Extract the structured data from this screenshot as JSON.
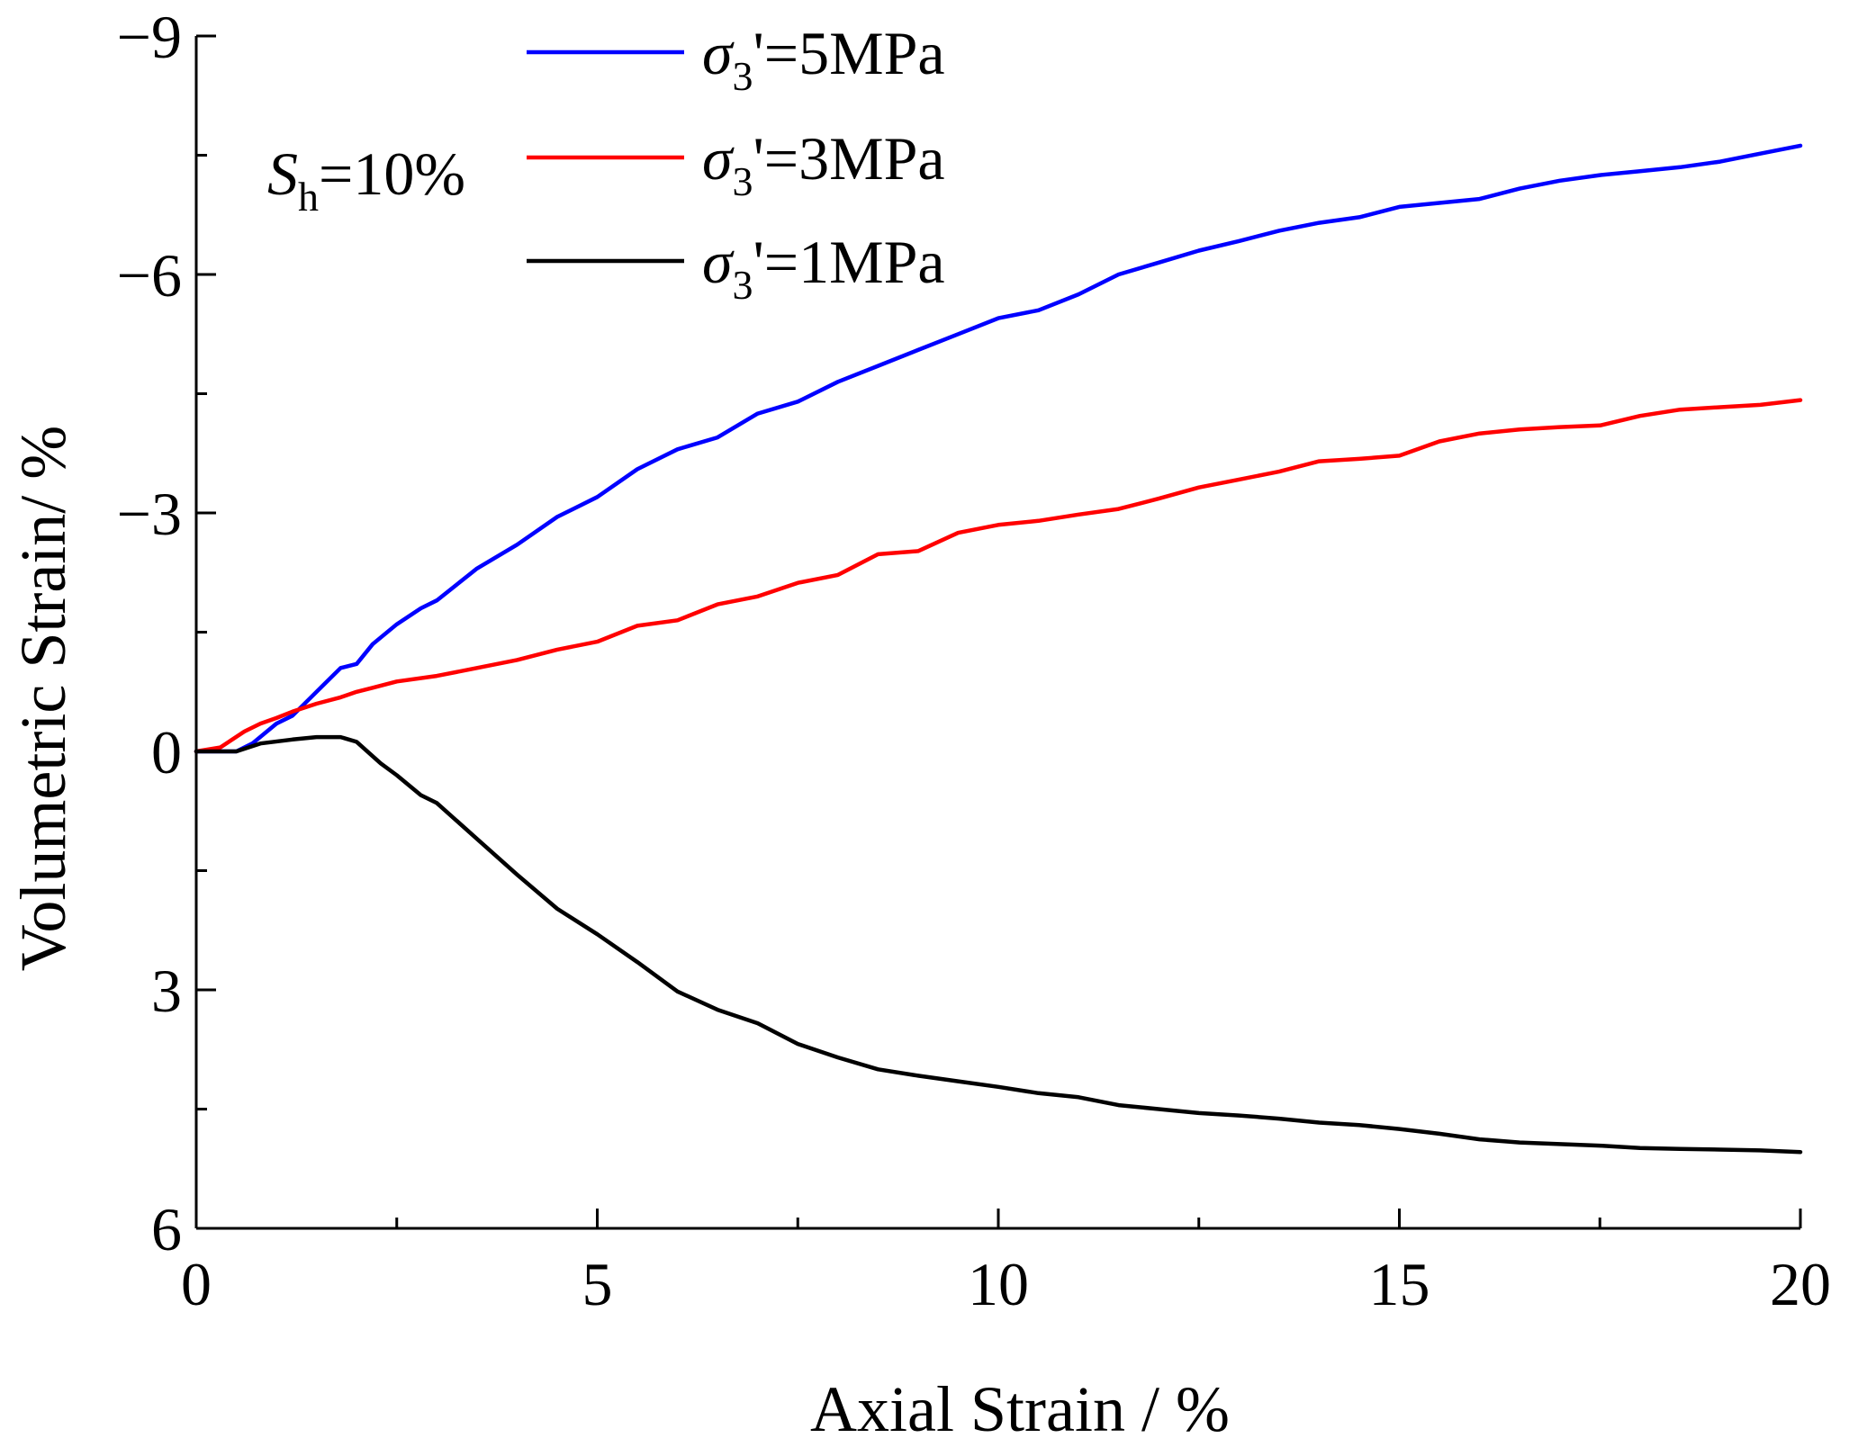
{
  "chart_data": {
    "type": "line",
    "title": "",
    "xlabel": "Axial Strain / %",
    "ylabel": "Volumetric Strain/ %",
    "xlim": [
      0,
      20
    ],
    "ylim": [
      6,
      -9
    ],
    "y_axis_inverted": true,
    "xticks": [
      0,
      5,
      10,
      15,
      20
    ],
    "xtick_labels": [
      "0",
      "5",
      "10",
      "15",
      "20"
    ],
    "yticks": [
      -9,
      -6,
      -3,
      0,
      3,
      6
    ],
    "ytick_labels": [
      "−9",
      "−6",
      "−3",
      "0",
      "3",
      "6"
    ],
    "grid": false,
    "legend_position": "top-center",
    "annotation": {
      "symbol": "S",
      "subscript": "h",
      "text": "=10%"
    },
    "series": [
      {
        "name": "σ3'=5MPa",
        "legend": {
          "sigma": "σ",
          "sub": "3",
          "rest": "'=5MPa"
        },
        "color": "#0000ff",
        "x": [
          0,
          0.5,
          0.7,
          1,
          1.2,
          1.5,
          1.8,
          2,
          2.2,
          2.5,
          2.8,
          3,
          3.5,
          4,
          4.5,
          5,
          5.5,
          6,
          6.5,
          7,
          7.5,
          8,
          8.5,
          9,
          9.5,
          10,
          10.5,
          11,
          11.5,
          12,
          12.5,
          13,
          13.5,
          14,
          14.5,
          15,
          15.5,
          16,
          16.5,
          17,
          17.5,
          18,
          18.5,
          19,
          19.5,
          20
        ],
        "y": [
          0,
          0,
          -0.1,
          -0.35,
          -0.45,
          -0.75,
          -1.05,
          -1.1,
          -1.35,
          -1.6,
          -1.8,
          -1.9,
          -2.3,
          -2.6,
          -2.95,
          -3.2,
          -3.55,
          -3.8,
          -3.95,
          -4.25,
          -4.4,
          -4.65,
          -4.85,
          -5.05,
          -5.25,
          -5.45,
          -5.55,
          -5.75,
          -6.0,
          -6.15,
          -6.3,
          -6.42,
          -6.55,
          -6.65,
          -6.72,
          -6.85,
          -6.9,
          -6.95,
          -7.08,
          -7.18,
          -7.25,
          -7.3,
          -7.35,
          -7.42,
          -7.52,
          -7.62
        ]
      },
      {
        "name": "σ3'=3MPa",
        "legend": {
          "sigma": "σ",
          "sub": "3",
          "rest": "'=3MPa"
        },
        "color": "#ff0000",
        "x": [
          0,
          0.3,
          0.6,
          0.8,
          1,
          1.2,
          1.5,
          1.8,
          2,
          2.2,
          2.5,
          3,
          3.5,
          4,
          4.5,
          5,
          5.5,
          6,
          6.5,
          7,
          7.5,
          8,
          8.5,
          9,
          9.5,
          10,
          10.5,
          11,
          11.5,
          12,
          12.5,
          13,
          13.5,
          14,
          14.5,
          15,
          15.5,
          16,
          16.5,
          17,
          17.5,
          18,
          18.5,
          19,
          19.5,
          20
        ],
        "y": [
          0,
          -0.05,
          -0.25,
          -0.35,
          -0.42,
          -0.5,
          -0.6,
          -0.68,
          -0.75,
          -0.8,
          -0.88,
          -0.95,
          -1.05,
          -1.15,
          -1.28,
          -1.38,
          -1.58,
          -1.65,
          -1.85,
          -1.95,
          -2.12,
          -2.22,
          -2.48,
          -2.52,
          -2.75,
          -2.85,
          -2.9,
          -2.98,
          -3.05,
          -3.18,
          -3.32,
          -3.42,
          -3.52,
          -3.65,
          -3.68,
          -3.72,
          -3.9,
          -4.0,
          -4.05,
          -4.08,
          -4.1,
          -4.22,
          -4.3,
          -4.33,
          -4.36,
          -4.42
        ]
      },
      {
        "name": "σ3'=1MPa",
        "legend": {
          "sigma": "σ",
          "sub": "3",
          "rest": "'=1MPa"
        },
        "color": "#000000",
        "x": [
          0,
          0.5,
          0.8,
          1.2,
          1.5,
          1.8,
          2,
          2.3,
          2.5,
          2.8,
          3,
          3.5,
          4,
          4.5,
          5,
          5.5,
          6,
          6.5,
          7,
          7.5,
          8,
          8.5,
          9,
          9.5,
          10,
          10.5,
          11,
          11.5,
          12,
          12.5,
          13,
          13.5,
          14,
          14.5,
          15,
          15.5,
          16,
          16.5,
          17,
          17.5,
          18,
          18.5,
          19,
          19.5,
          20
        ],
        "y": [
          0,
          0,
          -0.1,
          -0.15,
          -0.18,
          -0.18,
          -0.12,
          0.15,
          0.3,
          0.55,
          0.65,
          1.1,
          1.55,
          1.98,
          2.3,
          2.65,
          3.02,
          3.25,
          3.42,
          3.68,
          3.85,
          4.0,
          4.08,
          4.15,
          4.22,
          4.3,
          4.35,
          4.45,
          4.5,
          4.55,
          4.58,
          4.62,
          4.67,
          4.7,
          4.75,
          4.81,
          4.88,
          4.92,
          4.94,
          4.96,
          4.99,
          5.0,
          5.01,
          5.02,
          5.04
        ]
      }
    ]
  }
}
